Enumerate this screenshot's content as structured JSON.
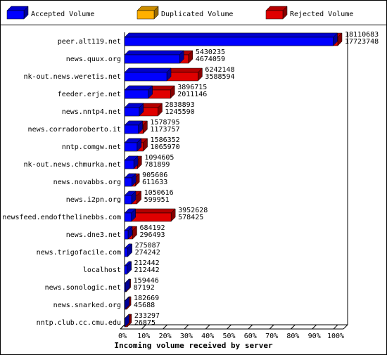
{
  "chart_data": {
    "type": "bar3d",
    "orientation": "horizontal",
    "xlabel": "Incoming volume received by server",
    "categories": [
      "peer.alt119.net",
      "news.quux.org",
      "nk-out.news.weretis.net",
      "feeder.erje.net",
      "news.nntp4.net",
      "news.corradoroberto.it",
      "nntp.comgw.net",
      "nk-out.news.chmurka.net",
      "news.novabbs.org",
      "news.i2pn.org",
      "newsfeed.endofthelinebbs.com",
      "news.dne3.net",
      "news.trigofacile.com",
      "localhost",
      "news.sonologic.net",
      "news.snarked.org",
      "nntp.club.cc.cmu.edu"
    ],
    "series": [
      {
        "name": "Accepted Volume",
        "color": "#0000ff",
        "values": [
          17723748,
          4674059,
          3588594,
          2011146,
          1245590,
          1173757,
          1065970,
          781899,
          611633,
          599951,
          578425,
          296493,
          274242,
          212442,
          87192,
          45688,
          26875
        ]
      },
      {
        "name": "Duplicated Volume",
        "color": "#ffb000",
        "values": [
          0,
          0,
          0,
          0,
          0,
          0,
          0,
          0,
          0,
          0,
          0,
          0,
          0,
          0,
          0,
          0,
          0
        ]
      },
      {
        "name": "Rejected Volume",
        "color": "#e00000",
        "values": [
          18110683,
          5430235,
          6242148,
          3896715,
          2838893,
          1578795,
          1586352,
          1094605,
          905606,
          1050616,
          3952628,
          684192,
          275087,
          212442,
          159446,
          182669,
          233297
        ]
      }
    ],
    "xlim": [
      0,
      18110683
    ],
    "xticks": [
      {
        "value": 0,
        "label": "0%"
      },
      {
        "value": 1811068.3,
        "label": "10%"
      },
      {
        "value": 3622136.6,
        "label": "20%"
      },
      {
        "value": 5433204.9,
        "label": "30%"
      },
      {
        "value": 7244273.2,
        "label": "40%"
      },
      {
        "value": 9055341.5,
        "label": "50%"
      },
      {
        "value": 10866409.8,
        "label": "60%"
      },
      {
        "value": 12677478.1,
        "label": "70%"
      },
      {
        "value": 14488546.4,
        "label": "80%"
      },
      {
        "value": 16299614.7,
        "label": "90%"
      },
      {
        "value": 18110683,
        "label": "100%"
      }
    ]
  }
}
